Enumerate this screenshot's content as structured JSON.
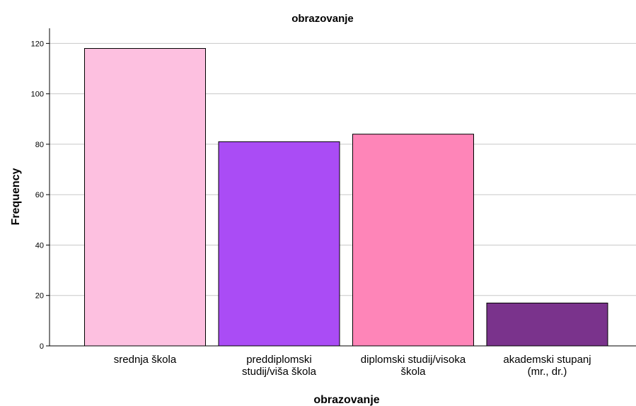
{
  "chart_data": {
    "type": "bar",
    "title": "obrazovanje",
    "xlabel": "obrazovanje",
    "ylabel": "Frequency",
    "categories": [
      [
        "srednja škola"
      ],
      [
        "preddiplomski",
        "studij/viša škola"
      ],
      [
        "diplomski studij/visoka",
        "škola"
      ],
      [
        "akademski stupanj",
        "(mr., dr.)"
      ]
    ],
    "values": [
      118,
      81,
      84,
      17
    ],
    "colors": [
      "#fdc0e0",
      "#aa4cf5",
      "#fe85b8",
      "#7a338c"
    ],
    "ylim": [
      0,
      126
    ],
    "yticks": [
      0,
      20,
      40,
      60,
      80,
      100,
      120
    ],
    "grid": true,
    "legend": "none"
  }
}
